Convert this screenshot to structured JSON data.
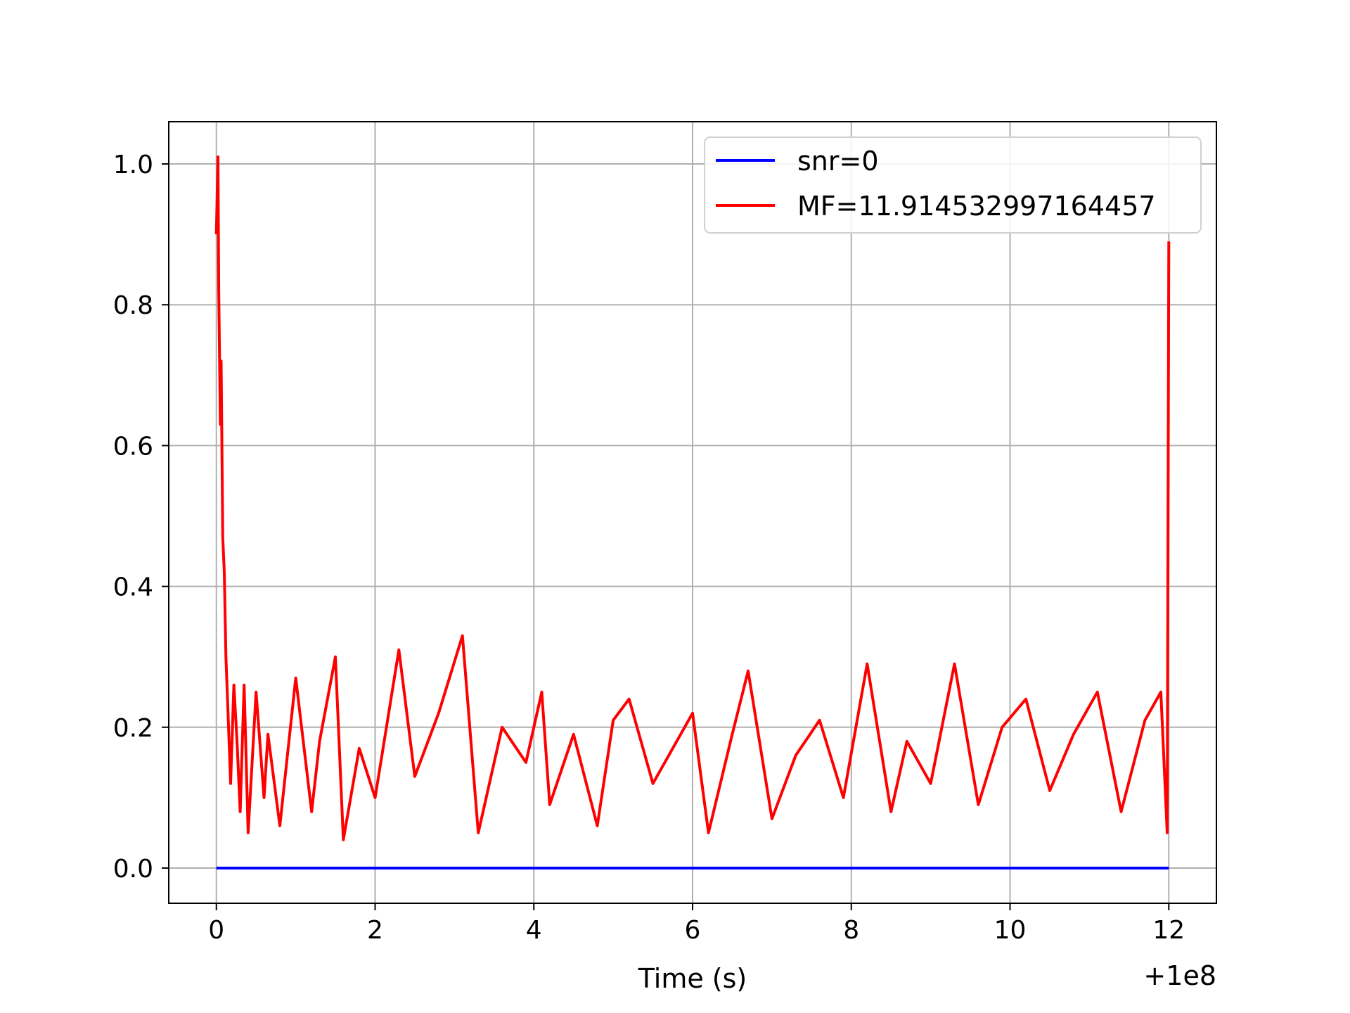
{
  "chart_data": {
    "type": "line",
    "title": "",
    "xlabel": "Time (s)",
    "ylabel": "",
    "x_offset_label": "+1e8",
    "xlim": [
      -0.6,
      12.6
    ],
    "ylim": [
      -0.05,
      1.06
    ],
    "x_ticks": [
      0,
      2,
      4,
      6,
      8,
      10,
      12
    ],
    "x_tick_labels": [
      "0",
      "2",
      "4",
      "6",
      "8",
      "10",
      "12"
    ],
    "y_ticks": [
      0.0,
      0.2,
      0.4,
      0.6,
      0.8,
      1.0
    ],
    "y_tick_labels": [
      "0.0",
      "0.2",
      "0.4",
      "0.6",
      "0.8",
      "1.0"
    ],
    "grid": true,
    "legend_position": "top-right",
    "series": [
      {
        "name": "snr=0",
        "color": "#0000ff",
        "x": [
          0,
          12
        ],
        "y": [
          0,
          0
        ]
      },
      {
        "name": "MF=11.914532997164457",
        "color": "#ff0000",
        "x": [
          0.0,
          0.02,
          0.03,
          0.05,
          0.06,
          0.08,
          0.1,
          0.12,
          0.15,
          0.18,
          0.22,
          0.26,
          0.3,
          0.35,
          0.4,
          0.5,
          0.6,
          0.65,
          0.8,
          1.0,
          1.2,
          1.3,
          1.5,
          1.6,
          1.8,
          2.0,
          2.3,
          2.5,
          2.8,
          3.1,
          3.3,
          3.6,
          3.9,
          4.1,
          4.2,
          4.5,
          4.8,
          5.0,
          5.2,
          5.5,
          5.8,
          6.0,
          6.2,
          6.5,
          6.7,
          7.0,
          7.3,
          7.6,
          7.9,
          8.2,
          8.5,
          8.7,
          9.0,
          9.3,
          9.6,
          9.9,
          10.2,
          10.5,
          10.8,
          11.1,
          11.4,
          11.7,
          11.9,
          11.98,
          12.0
        ],
        "y": [
          0.9,
          1.01,
          0.82,
          0.63,
          0.72,
          0.47,
          0.42,
          0.3,
          0.21,
          0.12,
          0.26,
          0.18,
          0.08,
          0.26,
          0.05,
          0.25,
          0.1,
          0.19,
          0.06,
          0.27,
          0.08,
          0.18,
          0.3,
          0.04,
          0.17,
          0.1,
          0.31,
          0.13,
          0.22,
          0.33,
          0.05,
          0.2,
          0.15,
          0.25,
          0.09,
          0.19,
          0.06,
          0.21,
          0.24,
          0.12,
          0.18,
          0.22,
          0.05,
          0.19,
          0.28,
          0.07,
          0.16,
          0.21,
          0.1,
          0.29,
          0.08,
          0.18,
          0.12,
          0.29,
          0.09,
          0.2,
          0.24,
          0.11,
          0.19,
          0.25,
          0.08,
          0.21,
          0.25,
          0.05,
          0.89
        ]
      }
    ]
  }
}
